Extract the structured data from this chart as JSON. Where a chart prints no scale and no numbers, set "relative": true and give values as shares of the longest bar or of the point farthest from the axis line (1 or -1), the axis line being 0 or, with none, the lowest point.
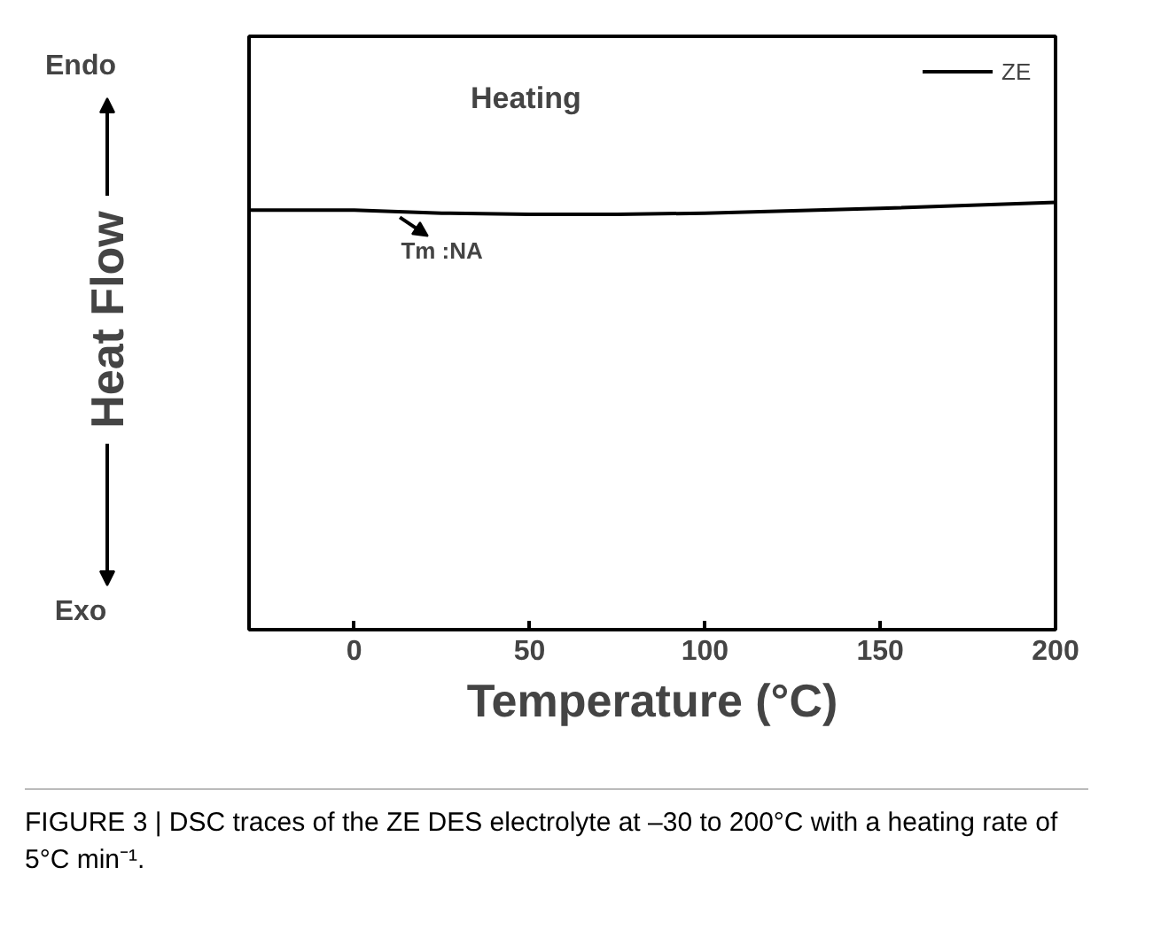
{
  "chart_data": {
    "type": "line",
    "relative": true,
    "xlabel": "Temperature (°C)",
    "ylabel": "Heat Flow",
    "xlim": [
      -30,
      200
    ],
    "xticks": [
      0,
      50,
      100,
      150,
      200
    ],
    "tick_labels": "x",
    "legend": "top right",
    "grid": false,
    "series": [
      {
        "name": "ZE",
        "color": "#000000",
        "x": [
          -30,
          0,
          25,
          50,
          75,
          100,
          150,
          200
        ],
        "values": [
          0.982,
          0.982,
          0.975,
          0.972,
          0.972,
          0.975,
          0.986,
          1.0
        ]
      }
    ],
    "annotations": [
      "Heating",
      "Endo",
      "Exo",
      {
        "text": "Tm :NA",
        "x": 25,
        "y": 0.975
      },
      "FIGURE 3 | DSC traces of the ZE DES electrolyte at –30 to 200°C with a heating rate of 5°C min⁻¹."
    ]
  }
}
